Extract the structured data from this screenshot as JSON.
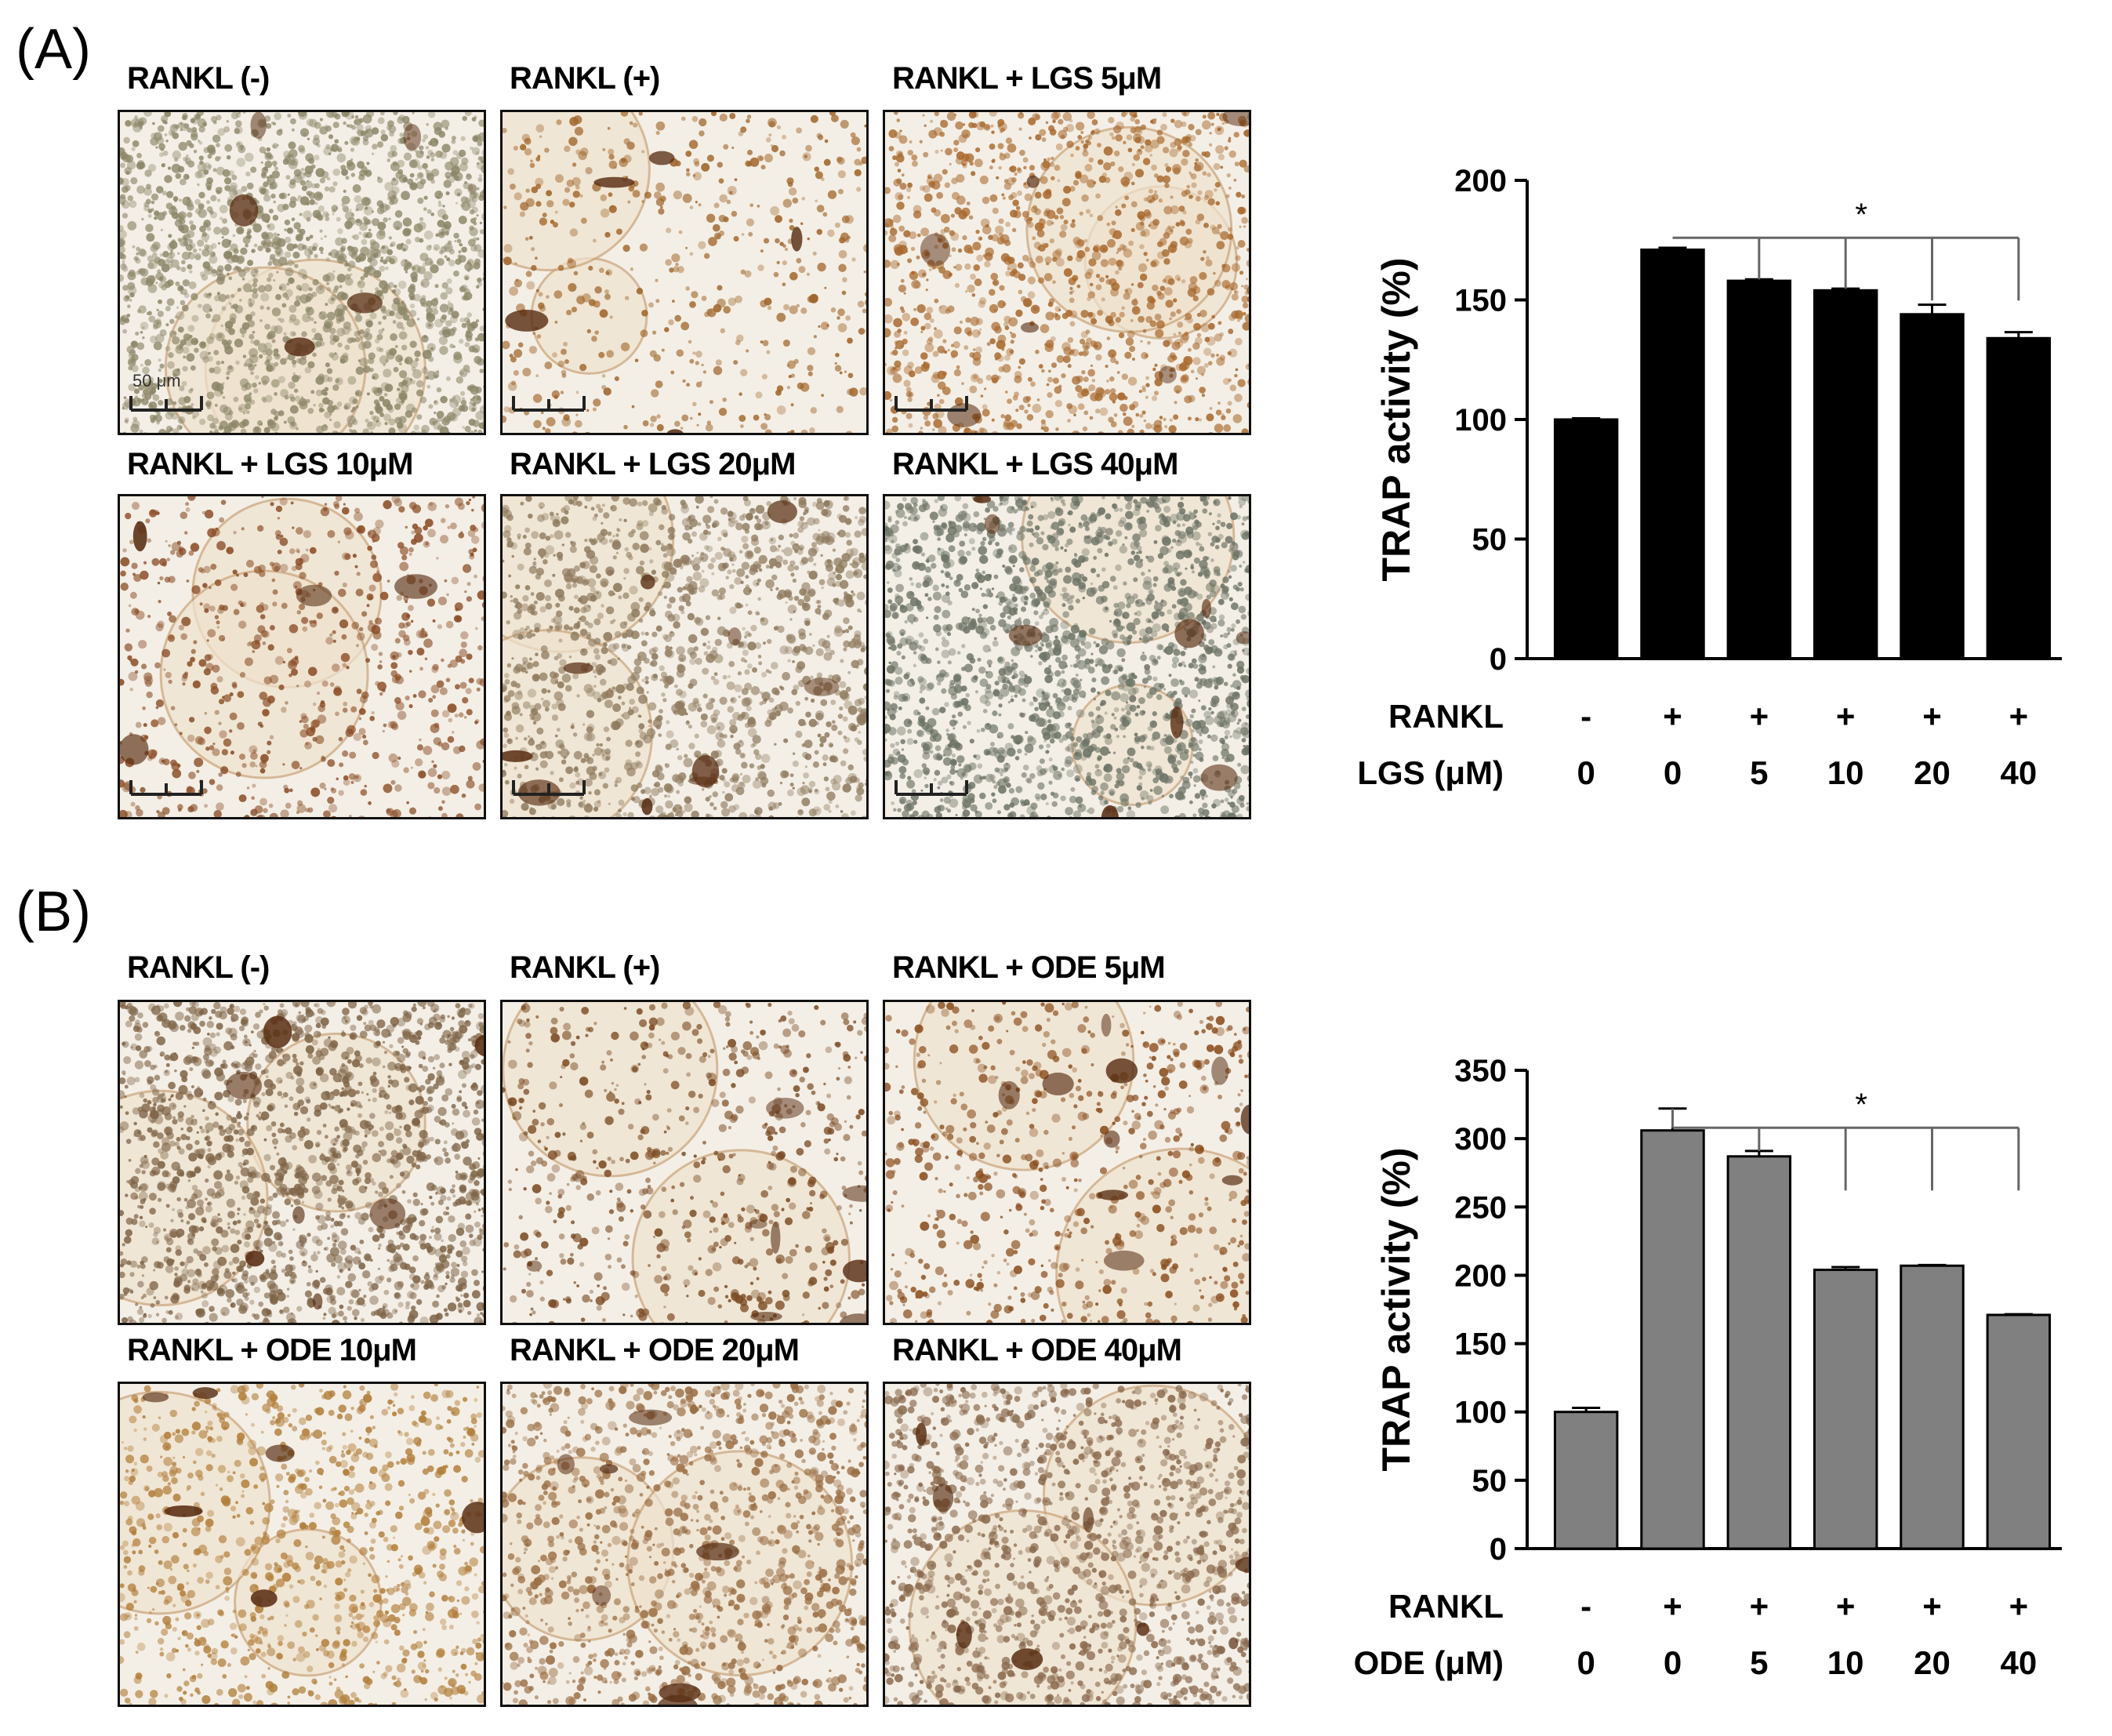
{
  "panels": [
    {
      "label": "(A)",
      "images": [
        {
          "title": "RANKL (-)",
          "tone": "#8c8668",
          "density": 0.8
        },
        {
          "title": "RANKL (+)",
          "tone": "#a0652a",
          "density": 0.12
        },
        {
          "title": "RANKL + LGS 5μM",
          "tone": "#a8692e",
          "density": 0.45
        },
        {
          "title": "RANKL + LGS 10μM",
          "tone": "#8a4d26",
          "density": 0.22
        },
        {
          "title": "RANKL + LGS 20μM",
          "tone": "#8e7a5e",
          "density": 0.55
        },
        {
          "title": "RANKL + LGS 40μM",
          "tone": "#6d7466",
          "density": 0.75
        }
      ],
      "scale_bar": "50 μm",
      "chart_data": {
        "type": "bar",
        "ylabel": "TRAP activity (%)",
        "ylim": [
          0,
          200
        ],
        "yticks": [
          0,
          50,
          100,
          150,
          200
        ],
        "bar_color": "#000000",
        "row_labels": [
          "RANKL",
          "LGS (μM)"
        ],
        "rankl": [
          "-",
          "+",
          "+",
          "+",
          "+",
          "+"
        ],
        "dose": [
          "0",
          "0",
          "5",
          "10",
          "20",
          "40"
        ],
        "values": [
          100,
          171,
          158,
          154,
          144,
          134
        ],
        "errors": [
          0.5,
          0.8,
          0.6,
          0.7,
          4,
          2.5
        ],
        "significance": "*"
      }
    },
    {
      "label": "(B)",
      "images": [
        {
          "title": "RANKL (-)",
          "tone": "#7f6548",
          "density": 0.7
        },
        {
          "title": "RANKL (+)",
          "tone": "#7a4a22",
          "density": 0.18
        },
        {
          "title": "RANKL + ODE 5μM",
          "tone": "#8a4e1e",
          "density": 0.2
        },
        {
          "title": "RANKL + ODE 10μM",
          "tone": "#b27f3c",
          "density": 0.35
        },
        {
          "title": "RANKL + ODE 20μM",
          "tone": "#9a6e44",
          "density": 0.45
        },
        {
          "title": "RANKL + ODE 40μM",
          "tone": "#8a6a4e",
          "density": 0.55
        }
      ],
      "scale_bar": "",
      "chart_data": {
        "type": "bar",
        "ylabel": "TRAP activity (%)",
        "ylim": [
          0,
          350
        ],
        "yticks": [
          0,
          50,
          100,
          150,
          200,
          250,
          300,
          350
        ],
        "bar_color": "#808080",
        "row_labels": [
          "RANKL",
          "ODE (μM)"
        ],
        "rankl": [
          "-",
          "+",
          "+",
          "+",
          "+",
          "+"
        ],
        "dose": [
          "0",
          "0",
          "5",
          "10",
          "20",
          "40"
        ],
        "values": [
          100,
          306,
          287,
          204,
          207,
          171
        ],
        "errors": [
          3,
          16,
          4,
          2,
          0.5,
          0.5
        ],
        "significance": "*"
      }
    }
  ]
}
